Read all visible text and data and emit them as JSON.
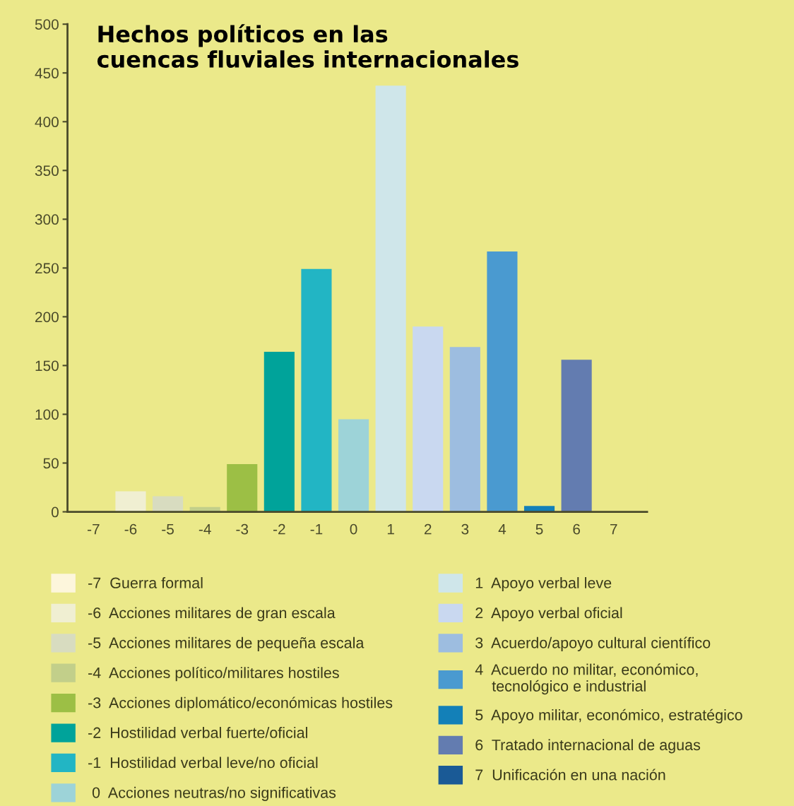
{
  "chart_data": {
    "type": "bar",
    "title": "Hechos políticos en las\ncuencas fluviales internacionales",
    "categories": [
      "-7",
      "-6",
      "-5",
      "-4",
      "-3",
      "-2",
      "-1",
      "0",
      "1",
      "2",
      "3",
      "4",
      "5",
      "6",
      "7"
    ],
    "series": [
      {
        "name": "-7  Guerra formal",
        "color": "#fdf6dc",
        "values": [
          0,
          null,
          null,
          null,
          null,
          null,
          null,
          null,
          null,
          null,
          null,
          null,
          null,
          null,
          null
        ]
      },
      {
        "name": "-6  Acciones militares de gran escala",
        "color": "#f0efd2",
        "values": [
          null,
          21,
          null,
          null,
          null,
          null,
          null,
          null,
          null,
          null,
          null,
          null,
          null,
          null,
          null
        ]
      },
      {
        "name": "-5  Acciones militares de pequeña escala",
        "color": "#d8dcc0",
        "values": [
          null,
          null,
          16,
          null,
          null,
          null,
          null,
          null,
          null,
          null,
          null,
          null,
          null,
          null,
          null
        ]
      },
      {
        "name": "-4  Acciones político/militares hostiles",
        "color": "#c2cf8a",
        "values": [
          null,
          null,
          null,
          5,
          null,
          null,
          null,
          null,
          null,
          null,
          null,
          null,
          null,
          null,
          null
        ]
      },
      {
        "name": "-3  Acciones diplomático/económicas hostiles",
        "color": "#9cbf45",
        "values": [
          null,
          null,
          null,
          null,
          49,
          null,
          null,
          null,
          null,
          null,
          null,
          null,
          null,
          null,
          null
        ]
      },
      {
        "name": "-2  Hostilidad verbal fuerte/oficial",
        "color": "#00a39a",
        "values": [
          null,
          null,
          null,
          null,
          null,
          164,
          null,
          null,
          null,
          null,
          null,
          null,
          null,
          null,
          null
        ]
      },
      {
        "name": "-1  Hostilidad verbal leve/no oficial",
        "color": "#22b5c4",
        "values": [
          null,
          null,
          null,
          null,
          null,
          null,
          249,
          null,
          null,
          null,
          null,
          null,
          null,
          null,
          null
        ]
      },
      {
        "name": " 0  Acciones neutras/no significativas",
        "color": "#9dd3d8",
        "values": [
          null,
          null,
          null,
          null,
          null,
          null,
          null,
          95,
          null,
          null,
          null,
          null,
          null,
          null,
          null
        ]
      },
      {
        "name": "1  Apoyo verbal leve",
        "color": "#cfe6ea",
        "values": [
          null,
          null,
          null,
          null,
          null,
          null,
          null,
          null,
          437,
          null,
          null,
          null,
          null,
          null,
          null
        ]
      },
      {
        "name": "2  Apoyo verbal oficial",
        "color": "#c9d8f0",
        "values": [
          null,
          null,
          null,
          null,
          null,
          null,
          null,
          null,
          null,
          190,
          null,
          null,
          null,
          null,
          null
        ]
      },
      {
        "name": "3  Acuerdo/apoyo cultural científico",
        "color": "#9dbde0",
        "values": [
          null,
          null,
          null,
          null,
          null,
          null,
          null,
          null,
          null,
          null,
          169,
          null,
          null,
          null,
          null
        ]
      },
      {
        "name": "4  Acuerdo no militar, económico,\n    tecnológico e industrial",
        "color": "#4a9ad0",
        "values": [
          null,
          null,
          null,
          null,
          null,
          null,
          null,
          null,
          null,
          null,
          null,
          267,
          null,
          null,
          null
        ]
      },
      {
        "name": "5  Apoyo militar, económico, estratégico",
        "color": "#1380b8",
        "values": [
          null,
          null,
          null,
          null,
          null,
          null,
          null,
          null,
          null,
          null,
          null,
          null,
          6,
          null,
          null
        ]
      },
      {
        "name": "6  Tratado internacional de aguas",
        "color": "#637cb0",
        "values": [
          null,
          null,
          null,
          null,
          null,
          null,
          null,
          null,
          null,
          null,
          null,
          null,
          null,
          156,
          null
        ]
      },
      {
        "name": "7  Unificación en una nación",
        "color": "#1a5a96",
        "values": [
          null,
          null,
          null,
          null,
          null,
          null,
          null,
          null,
          null,
          null,
          null,
          null,
          null,
          null,
          0
        ]
      }
    ],
    "ylim": [
      0,
      500
    ],
    "yticks": [
      0,
      50,
      100,
      150,
      200,
      250,
      300,
      350,
      400,
      450,
      500
    ],
    "grid": false,
    "legend": "bottom"
  }
}
